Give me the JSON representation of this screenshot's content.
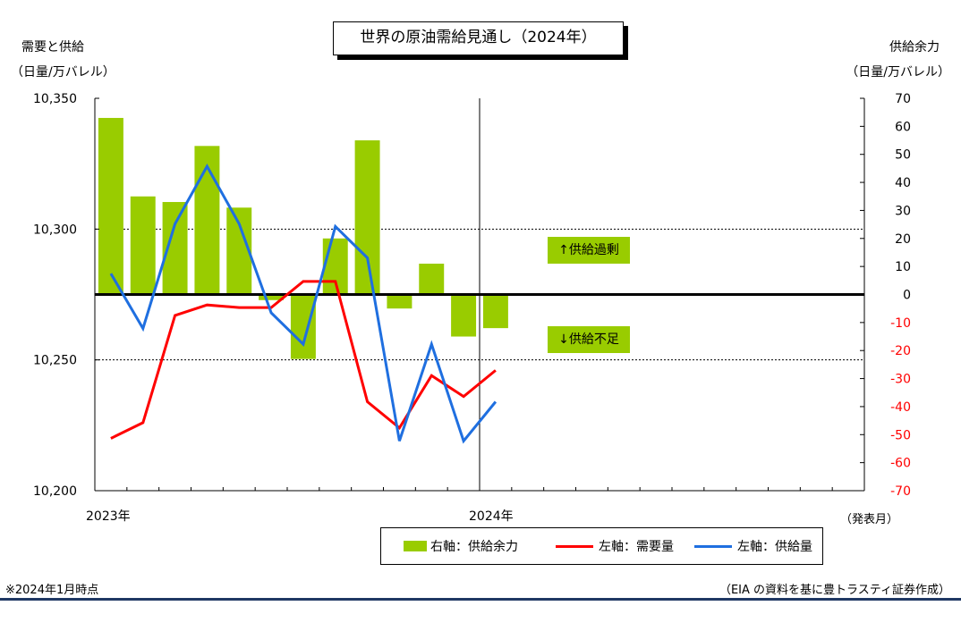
{
  "title": "世界の原油需給見通し（2024年）",
  "left_axis": {
    "label": "需要と供給",
    "unit": "（日量/万バレル）"
  },
  "right_axis": {
    "label": "供給余力",
    "unit": "（日量/万バレル）"
  },
  "annotations": {
    "surplus": "↑供給過剰",
    "deficit": "↓供給不足"
  },
  "year_labels": [
    "2023年",
    "2024年"
  ],
  "period_label": "（発表月）",
  "legend": {
    "supply_capacity": "右軸：供給余力",
    "demand": "左軸：需要量",
    "supply": "左軸：供給量"
  },
  "footer": {
    "note": "※2024年1月時点",
    "source": "（EIA の資料を基に豊トラスティ証券作成）"
  },
  "colors": {
    "bar": "#99cc00",
    "demand": "#ff0000",
    "supply": "#1f6fe0"
  },
  "chart_data": {
    "type": "bar",
    "x": [
      "2023-01",
      "2023-02",
      "2023-03",
      "2023-04",
      "2023-05",
      "2023-06",
      "2023-07",
      "2023-08",
      "2023-09",
      "2023-10",
      "2023-11",
      "2023-12",
      "2024-01"
    ],
    "series": [
      {
        "name": "右軸：供給余力",
        "type": "bar",
        "axis": "right",
        "values": [
          63,
          35,
          33,
          53,
          31,
          -2,
          -23,
          20,
          55,
          -5,
          11,
          -15,
          -12
        ]
      },
      {
        "name": "左軸：需要量",
        "type": "line",
        "axis": "left",
        "values": [
          10220,
          10226,
          10267,
          10271,
          10270,
          10270,
          10280,
          10280,
          10234,
          10224,
          10244,
          10236,
          10246
        ]
      },
      {
        "name": "左軸：供給量",
        "type": "line",
        "axis": "left",
        "values": [
          10283,
          10262,
          10302,
          10324,
          10302,
          10268,
          10256,
          10301,
          10289,
          10219,
          10256,
          10219,
          10234
        ]
      }
    ],
    "ylim_left": [
      10200,
      10350
    ],
    "ylim_right": [
      -70,
      70
    ],
    "yticks_left": [
      "10,200",
      "10,250",
      "10,300",
      "10,350"
    ],
    "yticks_right": [
      "70",
      "60",
      "50",
      "40",
      "30",
      "20",
      "10",
      "0",
      "-10",
      "-20",
      "-30",
      "-40",
      "-50",
      "-60",
      "-70"
    ],
    "x_months_span": 24,
    "grid": "dotted at 10,250 and 10,300"
  }
}
